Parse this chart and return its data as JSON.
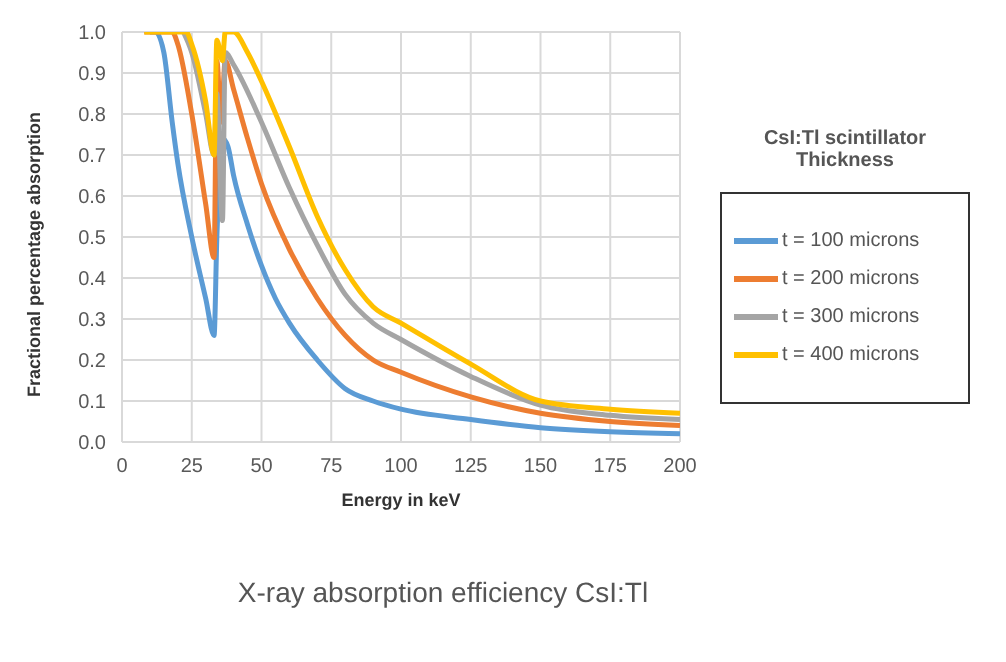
{
  "chart_data": {
    "type": "line",
    "title": "X-ray absorption efficiency CsI:Tl",
    "xlabel": "Energy in keV",
    "ylabel": "Fractional percentage absorption",
    "legend_title": "CsI:Tl scintillator Thickness",
    "legend": "right",
    "grid": true,
    "marker": "none",
    "line_style": "solid",
    "xlim": [
      0,
      200
    ],
    "xticks": [
      0,
      25,
      50,
      75,
      100,
      125,
      150,
      175,
      200
    ],
    "ylim": [
      0,
      1
    ],
    "yticks": [
      {
        "value": 0,
        "label": "0.0"
      },
      0.1,
      0.2,
      0.3,
      0.4,
      0.5,
      0.6,
      0.7,
      0.8,
      0.9,
      {
        "value": 1,
        "label": "1.0"
      }
    ],
    "series": [
      {
        "name": "t = 100 microns",
        "color": "#5b9bd5",
        "x": [
          10,
          12,
          15,
          18,
          20,
          25,
          30,
          33,
          34,
          36,
          38,
          40,
          45,
          50,
          55,
          60,
          70,
          80,
          90,
          100,
          125,
          150,
          175,
          200
        ],
        "values": [
          1,
          1,
          0.95,
          0.78,
          0.68,
          0.5,
          0.35,
          0.26,
          0.5,
          0.74,
          0.72,
          0.65,
          0.53,
          0.43,
          0.35,
          0.29,
          0.2,
          0.13,
          0.1,
          0.08,
          0.055,
          0.035,
          0.025,
          0.02
        ]
      },
      {
        "name": "t = 200 microns",
        "color": "#ed7d31",
        "x": [
          8,
          18,
          20,
          25,
          30,
          33,
          34,
          35.5,
          37,
          40,
          45,
          50,
          60,
          70,
          80,
          90,
          100,
          125,
          150,
          175,
          200
        ],
        "values": [
          1,
          1,
          0.97,
          0.8,
          0.58,
          0.45,
          0.93,
          0.78,
          0.93,
          0.86,
          0.74,
          0.63,
          0.47,
          0.35,
          0.26,
          0.2,
          0.17,
          0.11,
          0.07,
          0.05,
          0.04
        ]
      },
      {
        "name": "t = 300 microns",
        "color": "#a5a5a5",
        "x": [
          22,
          25,
          30,
          33,
          34,
          36,
          37,
          40,
          50,
          60,
          70,
          80,
          90,
          100,
          125,
          150,
          175,
          200
        ],
        "values": [
          1,
          0.95,
          0.8,
          0.7,
          0.85,
          0.54,
          0.95,
          0.92,
          0.78,
          0.62,
          0.48,
          0.36,
          0.29,
          0.25,
          0.16,
          0.09,
          0.065,
          0.055
        ]
      },
      {
        "name": "t = 400 microns",
        "color": "#ffc000",
        "x": [
          8,
          23,
          25,
          30,
          33,
          34,
          36,
          37,
          40,
          45,
          50,
          60,
          70,
          80,
          90,
          100,
          125,
          150,
          175,
          200
        ],
        "values": [
          1,
          1,
          0.97,
          0.83,
          0.7,
          0.98,
          0.93,
          1,
          1,
          0.95,
          0.88,
          0.72,
          0.55,
          0.42,
          0.33,
          0.29,
          0.19,
          0.1,
          0.08,
          0.07
        ]
      }
    ]
  }
}
